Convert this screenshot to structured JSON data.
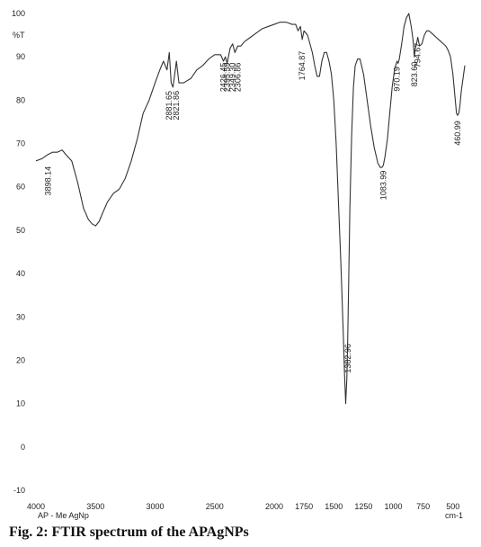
{
  "caption": "Fig. 2: FTIR spectrum of the APAgNPs",
  "chart_data": {
    "type": "line",
    "title": "",
    "xlabel": "cm-1",
    "ylabel": "%T",
    "sample_label": "AP - Me AgNp",
    "xlim": [
      4000,
      400
    ],
    "ylim": [
      -10,
      100
    ],
    "x_reversed": true,
    "grid": false,
    "x_ticks": [
      4000,
      3500,
      3000,
      2500,
      2000,
      1750,
      1500,
      1250,
      1000,
      750,
      500
    ],
    "y_ticks": [
      100,
      90,
      80,
      70,
      60,
      50,
      40,
      30,
      20,
      10,
      0,
      -10
    ],
    "series": [
      {
        "x": [
          4000,
          3950,
          3898,
          3860,
          3820,
          3780,
          3750,
          3700,
          3650,
          3600,
          3560,
          3530,
          3500,
          3470,
          3440,
          3400,
          3350,
          3300,
          3250,
          3200,
          3150,
          3100,
          3050,
          3000,
          2960,
          2930,
          2900,
          2881,
          2865,
          2850,
          2835,
          2821,
          2800,
          2760,
          2700,
          2650,
          2600,
          2550,
          2500,
          2450,
          2426,
          2410,
          2395,
          2370,
          2349,
          2330,
          2306,
          2280,
          2250,
          2200,
          2150,
          2100,
          2050,
          2000,
          1950,
          1900,
          1850,
          1820,
          1800,
          1780,
          1765,
          1750,
          1720,
          1700,
          1680,
          1660,
          1640,
          1620,
          1600,
          1580,
          1560,
          1540,
          1520,
          1500,
          1480,
          1460,
          1440,
          1420,
          1410,
          1400,
          1390,
          1383,
          1375,
          1365,
          1350,
          1335,
          1320,
          1300,
          1280,
          1250,
          1220,
          1190,
          1160,
          1130,
          1110,
          1095,
          1084,
          1070,
          1050,
          1030,
          1010,
          990,
          975,
          970,
          960,
          950,
          930,
          910,
          890,
          870,
          850,
          835,
          824,
          815,
          805,
          795,
          780,
          760,
          740,
          720,
          700,
          680,
          660,
          640,
          620,
          600,
          580,
          560,
          540,
          520,
          500,
          480,
          470,
          461,
          450,
          440,
          430,
          420,
          410,
          400
        ],
        "y": [
          66,
          66.5,
          67.5,
          68,
          68,
          68.5,
          67.5,
          66,
          61,
          55,
          52.5,
          51.5,
          51,
          52,
          54,
          56.5,
          58.5,
          59.5,
          62,
          66,
          71,
          77,
          80,
          84,
          87,
          89,
          87,
          91,
          84,
          83,
          86,
          89,
          84,
          84,
          85,
          87,
          88,
          89.5,
          90.5,
          90.5,
          89,
          90,
          88.5,
          92,
          93,
          91,
          92.5,
          92.5,
          93.5,
          94.5,
          95.5,
          96.5,
          97,
          97.5,
          98,
          98,
          97.5,
          97.5,
          96,
          97,
          94,
          96,
          95,
          93,
          91,
          88,
          85.5,
          85.5,
          89,
          91,
          91,
          89,
          86,
          80,
          70,
          56,
          42,
          26,
          17,
          10,
          16,
          25,
          38,
          55,
          72,
          83,
          88,
          89.5,
          89.5,
          86,
          80,
          74,
          69,
          65.5,
          64.5,
          64.5,
          65,
          67,
          71,
          77,
          83,
          87,
          88.5,
          89,
          88.5,
          89.5,
          93,
          97,
          99,
          100,
          97,
          94,
          90,
          92,
          93,
          94.5,
          92.5,
          93,
          95,
          96,
          96,
          95.5,
          95,
          94.5,
          94,
          93.5,
          93,
          92.5,
          91.5,
          90,
          86,
          80,
          77,
          76.5,
          77,
          79,
          82,
          84,
          86,
          88
        ]
      }
    ],
    "annotations": [
      {
        "x": 3898.14,
        "label": "3898.14"
      },
      {
        "x": 2881.65,
        "label": "2881.65"
      },
      {
        "x": 2821.86,
        "label": "2821.86"
      },
      {
        "x": 2426.45,
        "label": "2426.45"
      },
      {
        "x": 2395.59,
        "label": "2395.59"
      },
      {
        "x": 2349.3,
        "label": "2349.30"
      },
      {
        "x": 2306.86,
        "label": "2306.86"
      },
      {
        "x": 1764.87,
        "label": "1764.87"
      },
      {
        "x": 1382.96,
        "label": "1382.96"
      },
      {
        "x": 1083.99,
        "label": "1083.99"
      },
      {
        "x": 970.19,
        "label": "970.19"
      },
      {
        "x": 823.6,
        "label": "823.60"
      },
      {
        "x": 794.67,
        "label": "794.67"
      },
      {
        "x": 460.99,
        "label": "460.99"
      }
    ]
  }
}
